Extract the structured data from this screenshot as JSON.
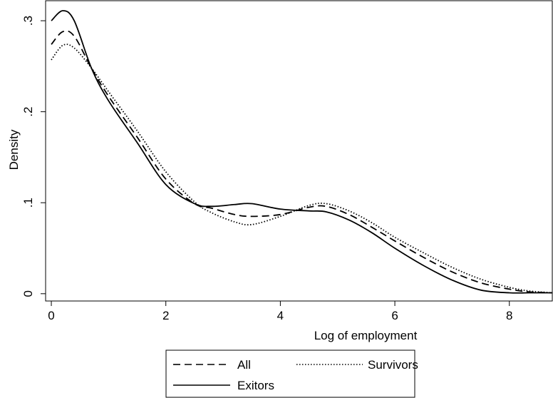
{
  "chart_data": {
    "type": "line",
    "title": "",
    "xlabel": "Log of employment",
    "ylabel": "Density",
    "xlim": [
      -0.1,
      8.75
    ],
    "ylim": [
      -0.008,
      0.322
    ],
    "xticks": [
      0,
      2,
      4,
      6,
      8
    ],
    "xtick_labels": [
      "0",
      "2",
      "4",
      "6",
      "8"
    ],
    "yticks": [
      0,
      0.1,
      0.2,
      0.3
    ],
    "ytick_labels": [
      "0",
      ".1",
      ".2",
      ".3"
    ],
    "grid": false,
    "legend_position": "bottom",
    "series": [
      {
        "name": "All",
        "style": "dashed",
        "color": "#000000",
        "x": [
          0,
          0.2,
          0.4,
          0.7,
          1.0,
          1.5,
          2.0,
          2.5,
          2.8,
          3.2,
          3.5,
          4.0,
          4.5,
          4.8,
          5.2,
          5.6,
          6.0,
          6.5,
          7.0,
          7.5,
          8.0,
          8.35,
          8.75
        ],
        "y": [
          0.274,
          0.288,
          0.283,
          0.248,
          0.217,
          0.172,
          0.126,
          0.099,
          0.094,
          0.087,
          0.085,
          0.087,
          0.095,
          0.096,
          0.087,
          0.073,
          0.058,
          0.04,
          0.024,
          0.012,
          0.005,
          0.002,
          0.001
        ]
      },
      {
        "name": "Survivors",
        "style": "dotted",
        "color": "#000000",
        "x": [
          0,
          0.2,
          0.4,
          0.7,
          1.0,
          1.5,
          2.0,
          2.5,
          2.8,
          3.2,
          3.5,
          4.0,
          4.5,
          4.8,
          5.2,
          5.6,
          6.0,
          6.5,
          7.0,
          7.5,
          8.0,
          8.35,
          8.75
        ],
        "y": [
          0.257,
          0.273,
          0.27,
          0.248,
          0.222,
          0.179,
          0.134,
          0.101,
          0.089,
          0.079,
          0.076,
          0.085,
          0.097,
          0.099,
          0.091,
          0.078,
          0.062,
          0.045,
          0.029,
          0.016,
          0.007,
          0.003,
          0.001
        ]
      },
      {
        "name": "Exitors",
        "style": "solid",
        "color": "#000000",
        "x": [
          0,
          0.2,
          0.4,
          0.7,
          1.0,
          1.5,
          2.0,
          2.5,
          2.8,
          3.2,
          3.5,
          4.0,
          4.5,
          4.8,
          5.2,
          5.6,
          6.0,
          6.5,
          7.0,
          7.5,
          8.0,
          8.35,
          8.75
        ],
        "y": [
          0.3,
          0.311,
          0.3,
          0.248,
          0.212,
          0.166,
          0.12,
          0.099,
          0.096,
          0.098,
          0.099,
          0.093,
          0.091,
          0.09,
          0.081,
          0.067,
          0.05,
          0.031,
          0.015,
          0.004,
          0.001,
          0.001,
          0.001
        ]
      }
    ]
  }
}
